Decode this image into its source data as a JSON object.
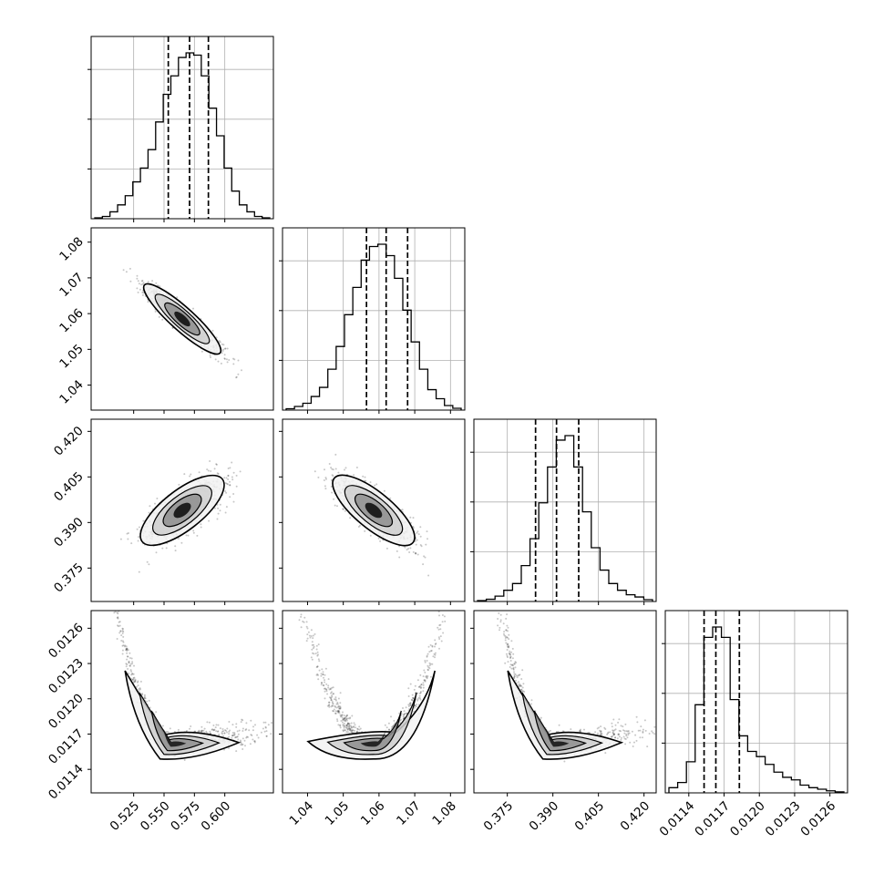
{
  "chart_data": {
    "type": "corner",
    "grid": true,
    "parameters": [
      {
        "ticks": [
          0.525,
          0.55,
          0.575,
          0.6
        ],
        "tick_labels": [
          "0.525",
          "0.550",
          "0.575",
          "0.600"
        ],
        "range": [
          0.49,
          0.64
        ],
        "quantiles": [
          0.5535,
          0.571,
          0.5865
        ],
        "hist": [
          0.2,
          0.5,
          1.5,
          3,
          5,
          8,
          11,
          15,
          21,
          27,
          31,
          35,
          36,
          35.5,
          31,
          24,
          18,
          11,
          6,
          3,
          1.5,
          0.5,
          0.2
        ]
      },
      {
        "ticks": [
          1.04,
          1.05,
          1.06,
          1.07,
          1.08
        ],
        "tick_labels": [
          "1.04",
          "1.05",
          "1.06",
          "1.07",
          "1.08"
        ],
        "range": [
          1.033,
          1.084
        ],
        "quantiles": [
          1.0565,
          1.062,
          1.068
        ],
        "hist": [
          0.3,
          0.8,
          1.5,
          3,
          5,
          9,
          14,
          21,
          27,
          33,
          36,
          36.5,
          34,
          29,
          22,
          15,
          9,
          4.5,
          2.5,
          1,
          0.4
        ]
      },
      {
        "ticks": [
          0.375,
          0.39,
          0.405,
          0.42
        ],
        "tick_labels": [
          "0.375",
          "0.390",
          "0.405",
          "0.420"
        ],
        "range": [
          0.364,
          0.424
        ],
        "quantiles": [
          0.3843,
          0.3912,
          0.3985
        ],
        "hist": [
          0.2,
          0.5,
          1.2,
          2.5,
          4,
          8,
          14,
          22,
          30,
          36,
          37,
          30,
          20,
          12,
          7,
          4,
          2.5,
          1.5,
          1,
          0.4
        ]
      },
      {
        "ticks": [
          0.0114,
          0.0117,
          0.012,
          0.0123,
          0.0126
        ],
        "tick_labels": [
          "0.0114",
          "0.0117",
          "0.0120",
          "0.0123",
          "0.0126"
        ],
        "range": [
          0.0112,
          0.01275
        ],
        "quantiles": [
          0.01153,
          0.01163,
          0.01183
        ],
        "hist": [
          1,
          2,
          6,
          17,
          30,
          32,
          30,
          18,
          11,
          8,
          7,
          5.5,
          4,
          3,
          2.5,
          1.5,
          1,
          0.7,
          0.4,
          0.2
        ]
      }
    ],
    "pairs": [
      {
        "row": 1,
        "col": 0,
        "kind": "linear",
        "slope": -0.9,
        "sx": 0.62,
        "sy": 0.12
      },
      {
        "row": 2,
        "col": 0,
        "kind": "linear",
        "slope": 0.78,
        "sx": 0.62,
        "sy": 0.22
      },
      {
        "row": 2,
        "col": 1,
        "kind": "linear",
        "slope": -0.82,
        "sx": 0.62,
        "sy": 0.2
      },
      {
        "row": 3,
        "col": 0,
        "kind": "curve",
        "side": -1,
        "sx": 0.6,
        "sy": 0.1
      },
      {
        "row": 3,
        "col": 1,
        "kind": "curve",
        "side": 0,
        "sx": 0.6,
        "sy": 0.1
      },
      {
        "row": 3,
        "col": 2,
        "kind": "curve",
        "side": -1,
        "sx": 0.6,
        "sy": 0.1
      }
    ]
  }
}
